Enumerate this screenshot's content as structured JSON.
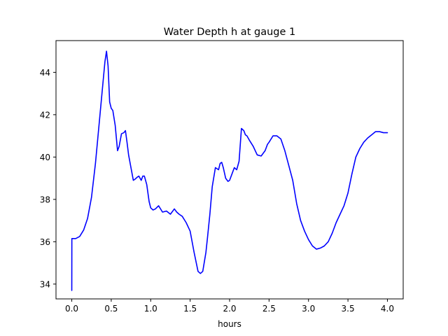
{
  "chart_data": {
    "type": "line",
    "title": "Water Depth h at gauge 1",
    "xlabel": "hours",
    "ylabel": "",
    "xlim": [
      -0.2,
      4.2
    ],
    "ylim": [
      33.3,
      45.5
    ],
    "xticks": [
      0.0,
      0.5,
      1.0,
      1.5,
      2.0,
      2.5,
      3.0,
      3.5,
      4.0
    ],
    "xtick_labels": [
      "0.0",
      "0.5",
      "1.0",
      "1.5",
      "2.0",
      "2.5",
      "3.0",
      "3.5",
      "4.0"
    ],
    "yticks": [
      34,
      36,
      38,
      40,
      42,
      44
    ],
    "ytick_labels": [
      "34",
      "36",
      "38",
      "40",
      "42",
      "44"
    ],
    "grid": false,
    "series": [
      {
        "color": "#0000ff",
        "x": [
          0.0,
          0.001,
          0.05,
          0.1,
          0.15,
          0.2,
          0.25,
          0.3,
          0.35,
          0.4,
          0.42,
          0.44,
          0.46,
          0.48,
          0.5,
          0.52,
          0.55,
          0.58,
          0.6,
          0.63,
          0.66,
          0.68,
          0.7,
          0.72,
          0.75,
          0.78,
          0.8,
          0.83,
          0.85,
          0.88,
          0.9,
          0.92,
          0.95,
          0.98,
          1.0,
          1.03,
          1.06,
          1.1,
          1.15,
          1.2,
          1.25,
          1.3,
          1.33,
          1.36,
          1.4,
          1.45,
          1.5,
          1.55,
          1.6,
          1.63,
          1.66,
          1.7,
          1.72,
          1.75,
          1.78,
          1.82,
          1.86,
          1.88,
          1.9,
          1.92,
          1.95,
          1.98,
          2.0,
          2.03,
          2.06,
          2.09,
          2.12,
          2.15,
          2.18,
          2.2,
          2.22,
          2.25,
          2.3,
          2.35,
          2.4,
          2.45,
          2.48,
          2.5,
          2.55,
          2.6,
          2.65,
          2.7,
          2.75,
          2.8,
          2.85,
          2.9,
          2.95,
          3.0,
          3.05,
          3.1,
          3.15,
          3.2,
          3.25,
          3.3,
          3.35,
          3.4,
          3.45,
          3.5,
          3.55,
          3.6,
          3.65,
          3.7,
          3.75,
          3.8,
          3.85,
          3.9,
          3.95,
          4.0
        ],
        "y": [
          33.7,
          36.15,
          36.15,
          36.25,
          36.55,
          37.1,
          38.1,
          39.7,
          41.7,
          43.7,
          44.5,
          45.0,
          44.3,
          42.6,
          42.3,
          42.2,
          41.5,
          40.3,
          40.5,
          41.1,
          41.15,
          41.25,
          40.7,
          40.1,
          39.5,
          38.9,
          38.95,
          39.05,
          39.1,
          38.9,
          39.1,
          39.1,
          38.7,
          37.9,
          37.6,
          37.5,
          37.55,
          37.7,
          37.4,
          37.45,
          37.3,
          37.55,
          37.4,
          37.3,
          37.2,
          36.9,
          36.5,
          35.5,
          34.6,
          34.5,
          34.6,
          35.5,
          36.2,
          37.3,
          38.6,
          39.5,
          39.4,
          39.7,
          39.75,
          39.5,
          39.0,
          38.85,
          38.9,
          39.2,
          39.5,
          39.4,
          39.8,
          41.35,
          41.25,
          41.05,
          41.0,
          40.8,
          40.5,
          40.1,
          40.05,
          40.3,
          40.6,
          40.7,
          41.0,
          41.0,
          40.85,
          40.3,
          39.6,
          38.9,
          37.8,
          37.0,
          36.5,
          36.1,
          35.8,
          35.65,
          35.7,
          35.8,
          36.0,
          36.4,
          36.9,
          37.3,
          37.7,
          38.3,
          39.2,
          40.0,
          40.4,
          40.7,
          40.9,
          41.05,
          41.2,
          41.2,
          41.15,
          41.15
        ]
      }
    ]
  }
}
